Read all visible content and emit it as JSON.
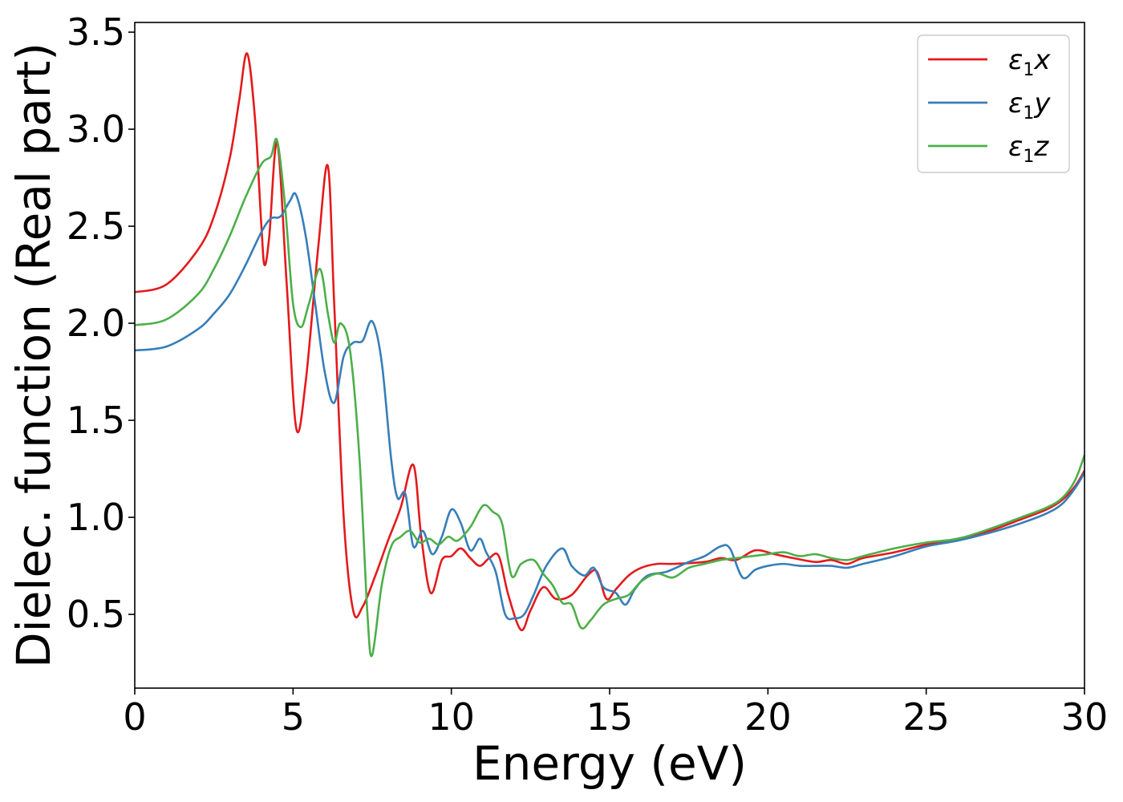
{
  "chart_data": {
    "type": "line",
    "xlabel": "Energy (eV)",
    "ylabel": "Dielec. function (Real part)",
    "xlim": [
      0,
      30
    ],
    "ylim": [
      0.12,
      3.55
    ],
    "xticks": [
      "0",
      "5",
      "10",
      "15",
      "20",
      "25",
      "30"
    ],
    "yticks": [
      "0.5",
      "1.0",
      "1.5",
      "2.0",
      "2.5",
      "3.0",
      "3.5"
    ],
    "grid": false,
    "legend_position": "top-right",
    "series": [
      {
        "name": "ε1x",
        "legend": {
          "base": "ε",
          "sub": "1",
          "tail": "x"
        },
        "color": "#e41a1c",
        "x": [
          0,
          1,
          2,
          2.5,
          3,
          3.3,
          3.55,
          3.8,
          4.0,
          4.1,
          4.25,
          4.5,
          4.8,
          5.1,
          5.4,
          5.8,
          6.1,
          6.3,
          6.6,
          6.9,
          7.2,
          7.6,
          8.0,
          8.4,
          8.8,
          9.05,
          9.35,
          9.7,
          10.0,
          10.3,
          10.6,
          10.9,
          11.2,
          11.5,
          11.8,
          12.2,
          12.5,
          12.9,
          13.3,
          13.8,
          14.3,
          14.6,
          14.9,
          15.2,
          15.6,
          16.0,
          16.5,
          17.0,
          18.0,
          18.5,
          19.0,
          19.6,
          20.2,
          20.8,
          21.5,
          22.0,
          22.5,
          23.0,
          24.0,
          25.0,
          26.0,
          27.0,
          28.0,
          28.8,
          29.3,
          29.7,
          30.0
        ],
        "values": [
          2.16,
          2.2,
          2.38,
          2.55,
          2.85,
          3.15,
          3.39,
          3.05,
          2.5,
          2.3,
          2.45,
          2.93,
          2.2,
          1.46,
          1.7,
          2.4,
          2.81,
          2.1,
          1.0,
          0.52,
          0.54,
          0.7,
          0.88,
          1.05,
          1.27,
          0.9,
          0.61,
          0.78,
          0.8,
          0.84,
          0.79,
          0.75,
          0.79,
          0.8,
          0.6,
          0.42,
          0.52,
          0.64,
          0.58,
          0.6,
          0.7,
          0.72,
          0.58,
          0.63,
          0.7,
          0.74,
          0.76,
          0.76,
          0.77,
          0.79,
          0.78,
          0.83,
          0.81,
          0.79,
          0.77,
          0.78,
          0.76,
          0.79,
          0.82,
          0.86,
          0.89,
          0.93,
          0.99,
          1.04,
          1.09,
          1.16,
          1.24
        ]
      },
      {
        "name": "ε1y",
        "legend": {
          "base": "ε",
          "sub": "1",
          "tail": "y"
        },
        "color": "#377eb8",
        "x": [
          0,
          1,
          2,
          2.5,
          3,
          3.5,
          4.0,
          4.3,
          4.6,
          4.9,
          5.1,
          5.4,
          5.7,
          6.0,
          6.3,
          6.6,
          6.9,
          7.2,
          7.5,
          7.8,
          8.1,
          8.3,
          8.55,
          8.8,
          9.1,
          9.4,
          9.7,
          10.0,
          10.3,
          10.6,
          10.9,
          11.1,
          11.4,
          11.7,
          12.0,
          12.3,
          12.6,
          13.0,
          13.5,
          13.8,
          14.2,
          14.5,
          14.8,
          15.2,
          15.5,
          15.8,
          16.2,
          16.8,
          17.5,
          18.0,
          18.5,
          18.8,
          19.2,
          19.6,
          20.0,
          20.5,
          21.0,
          21.5,
          22.0,
          22.5,
          23.0,
          24.0,
          25.0,
          26.0,
          27.0,
          28.0,
          28.8,
          29.3,
          29.7,
          30.0
        ],
        "values": [
          1.86,
          1.88,
          1.97,
          2.05,
          2.15,
          2.3,
          2.47,
          2.54,
          2.55,
          2.63,
          2.66,
          2.45,
          2.1,
          1.75,
          1.59,
          1.83,
          1.9,
          1.91,
          2.01,
          1.8,
          1.3,
          1.1,
          1.12,
          0.85,
          0.93,
          0.81,
          0.9,
          1.04,
          0.97,
          0.83,
          0.89,
          0.82,
          0.72,
          0.5,
          0.48,
          0.5,
          0.6,
          0.75,
          0.84,
          0.75,
          0.7,
          0.74,
          0.64,
          0.61,
          0.55,
          0.63,
          0.7,
          0.72,
          0.77,
          0.8,
          0.85,
          0.84,
          0.69,
          0.73,
          0.75,
          0.76,
          0.75,
          0.75,
          0.75,
          0.74,
          0.76,
          0.8,
          0.85,
          0.88,
          0.92,
          0.97,
          1.02,
          1.07,
          1.15,
          1.23
        ]
      },
      {
        "name": "ε1z",
        "legend": {
          "base": "ε",
          "sub": "1",
          "tail": "z"
        },
        "color": "#4daf4a",
        "x": [
          0,
          1,
          2,
          2.5,
          3,
          3.5,
          4.0,
          4.3,
          4.5,
          4.75,
          5.0,
          5.25,
          5.5,
          5.85,
          6.1,
          6.3,
          6.5,
          6.8,
          7.1,
          7.35,
          7.5,
          7.8,
          8.1,
          8.4,
          8.7,
          9.0,
          9.3,
          9.6,
          9.9,
          10.2,
          10.6,
          11.0,
          11.3,
          11.6,
          11.9,
          12.2,
          12.6,
          12.9,
          13.2,
          13.5,
          13.8,
          14.1,
          14.4,
          14.8,
          15.2,
          15.6,
          16.0,
          16.5,
          17.0,
          17.5,
          18.0,
          18.5,
          19.0,
          19.5,
          20.0,
          20.5,
          21.0,
          21.5,
          22.0,
          22.5,
          23.0,
          24.0,
          25.0,
          26.0,
          27.0,
          28.0,
          28.8,
          29.3,
          29.7,
          30.0
        ],
        "values": [
          1.99,
          2.02,
          2.15,
          2.28,
          2.45,
          2.65,
          2.82,
          2.86,
          2.94,
          2.6,
          2.1,
          1.98,
          2.1,
          2.28,
          2.05,
          1.9,
          2.0,
          1.86,
          1.3,
          0.5,
          0.29,
          0.65,
          0.85,
          0.9,
          0.93,
          0.87,
          0.89,
          0.86,
          0.9,
          0.88,
          0.95,
          1.06,
          1.03,
          0.97,
          0.7,
          0.76,
          0.78,
          0.71,
          0.65,
          0.56,
          0.55,
          0.43,
          0.47,
          0.55,
          0.58,
          0.6,
          0.67,
          0.71,
          0.69,
          0.74,
          0.76,
          0.78,
          0.79,
          0.8,
          0.81,
          0.82,
          0.8,
          0.81,
          0.79,
          0.78,
          0.8,
          0.84,
          0.87,
          0.89,
          0.94,
          1.0,
          1.05,
          1.1,
          1.19,
          1.32
        ]
      }
    ]
  }
}
